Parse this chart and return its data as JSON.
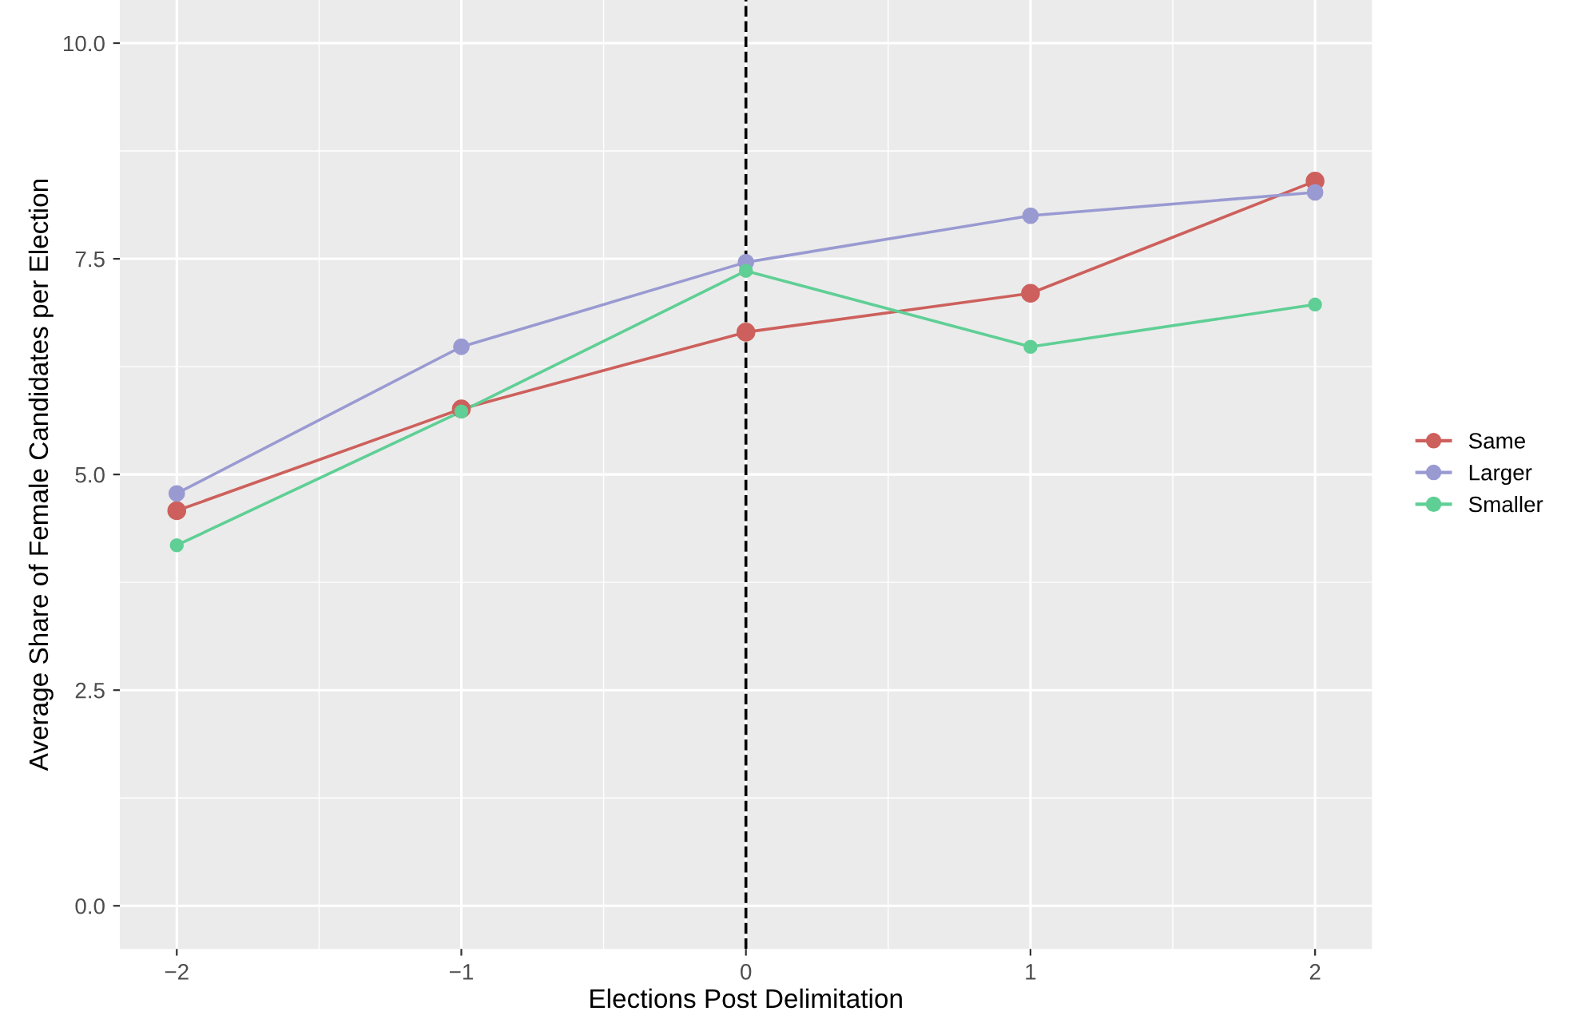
{
  "chart_data": {
    "type": "line",
    "xlabel": "Elections Post Delimitation",
    "ylabel": "Average Share of Female Candidates per Election",
    "x": [
      -2,
      -1,
      0,
      1,
      2
    ],
    "series": [
      {
        "name": "Same",
        "color": "#cd605c",
        "values": [
          4.58,
          5.76,
          6.65,
          7.1,
          8.4
        ]
      },
      {
        "name": "Larger",
        "color": "#9a9ad2",
        "values": [
          4.78,
          6.48,
          7.46,
          8.0,
          8.27
        ]
      },
      {
        "name": "Smaller",
        "color": "#5fcf95",
        "values": [
          4.18,
          5.73,
          7.36,
          6.48,
          6.97
        ]
      }
    ],
    "xlim": [
      -2.2,
      2.2
    ],
    "xticks": [
      {
        "value": -2,
        "label": "−2"
      },
      {
        "value": -1,
        "label": "−1"
      },
      0,
      1,
      2
    ],
    "ylim": [
      -0.5,
      10.5
    ],
    "yticks": [
      {
        "value": 0,
        "label": "0.0"
      },
      {
        "value": 2.5,
        "label": "2.5"
      },
      {
        "value": 5,
        "label": "5.0"
      },
      {
        "value": 7.5,
        "label": "7.5"
      },
      {
        "value": 10,
        "label": "10.0"
      }
    ],
    "ref_lines": [
      {
        "axis": "x",
        "value": 0,
        "color": "#000000",
        "line_style": "dashed"
      }
    ],
    "grid": true,
    "legend": "right",
    "marker": "circle",
    "line_style": "solid"
  }
}
